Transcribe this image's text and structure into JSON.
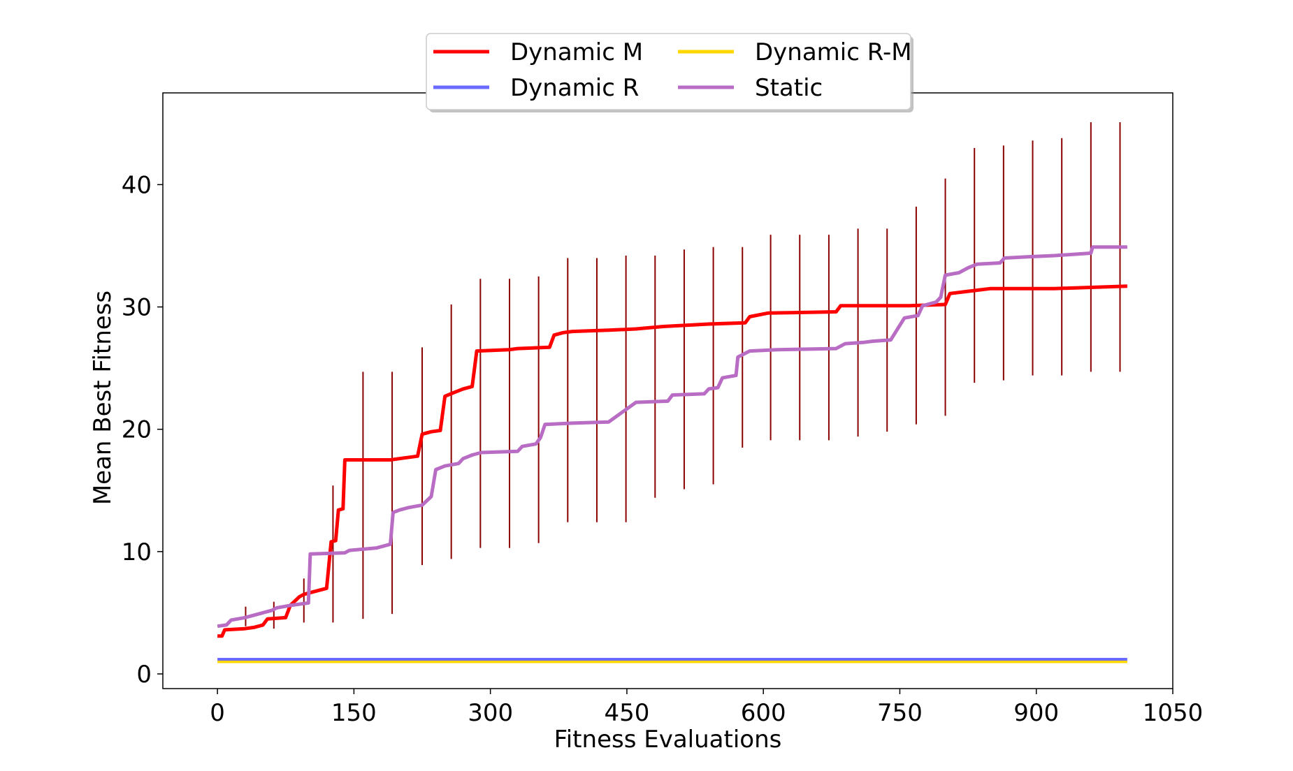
{
  "chart_data": {
    "type": "line",
    "title": "",
    "xlabel": "Fitness Evaluations",
    "ylabel": "Mean Best Fitness",
    "xlim": [
      -60,
      1050
    ],
    "ylim": [
      -1.2,
      47.5
    ],
    "xticks": [
      0,
      150,
      300,
      450,
      600,
      750,
      900,
      1050
    ],
    "yticks": [
      0,
      10,
      20,
      30,
      40
    ],
    "grid": false,
    "legend": {
      "placement": "top-center",
      "columns": 2,
      "entries": [
        "Dynamic M",
        "Dynamic R",
        "Dynamic R-M",
        "Static"
      ]
    },
    "series": [
      {
        "name": "Dynamic M",
        "color": "#ff0000",
        "errorbar_color": "#8b0000",
        "points": [
          [
            0,
            3.1
          ],
          [
            5,
            3.1
          ],
          [
            8,
            3.6
          ],
          [
            30,
            3.7
          ],
          [
            40,
            3.8
          ],
          [
            50,
            4.0
          ],
          [
            55,
            4.5
          ],
          [
            75,
            4.6
          ],
          [
            80,
            5.6
          ],
          [
            90,
            6.3
          ],
          [
            95,
            6.5
          ],
          [
            105,
            6.7
          ],
          [
            120,
            7.0
          ],
          [
            125,
            10.8
          ],
          [
            130,
            10.9
          ],
          [
            133,
            13.4
          ],
          [
            138,
            13.5
          ],
          [
            140,
            17.5
          ],
          [
            190,
            17.5
          ],
          [
            200,
            17.6
          ],
          [
            220,
            17.8
          ],
          [
            225,
            19.6
          ],
          [
            235,
            19.8
          ],
          [
            245,
            19.9
          ],
          [
            250,
            22.7
          ],
          [
            260,
            23.0
          ],
          [
            270,
            23.3
          ],
          [
            280,
            23.5
          ],
          [
            285,
            26.4
          ],
          [
            320,
            26.5
          ],
          [
            330,
            26.6
          ],
          [
            365,
            26.7
          ],
          [
            370,
            27.7
          ],
          [
            380,
            27.9
          ],
          [
            390,
            28.0
          ],
          [
            430,
            28.1
          ],
          [
            460,
            28.2
          ],
          [
            490,
            28.4
          ],
          [
            540,
            28.6
          ],
          [
            580,
            28.7
          ],
          [
            585,
            29.2
          ],
          [
            605,
            29.5
          ],
          [
            680,
            29.6
          ],
          [
            685,
            30.1
          ],
          [
            760,
            30.1
          ],
          [
            800,
            30.2
          ],
          [
            805,
            31.1
          ],
          [
            850,
            31.5
          ],
          [
            920,
            31.5
          ],
          [
            960,
            31.6
          ],
          [
            1000,
            31.7
          ]
        ],
        "error_bars": [
          [
            31,
            4.7,
            0.8
          ],
          [
            62,
            4.8,
            1.1
          ],
          [
            95,
            6.0,
            1.8
          ],
          [
            127,
            9.8,
            5.6
          ],
          [
            160,
            14.6,
            10.1
          ],
          [
            192,
            14.8,
            9.9
          ],
          [
            225,
            17.8,
            8.9
          ],
          [
            257,
            19.8,
            10.4
          ],
          [
            289,
            21.3,
            11.0
          ],
          [
            321,
            21.3,
            11.0
          ],
          [
            353,
            21.6,
            10.9
          ],
          [
            385,
            23.2,
            10.8
          ],
          [
            417,
            23.2,
            10.8
          ],
          [
            449,
            23.3,
            10.9
          ],
          [
            481,
            24.3,
            9.9
          ],
          [
            513,
            24.9,
            9.8
          ],
          [
            545,
            25.2,
            9.7
          ],
          [
            577,
            26.7,
            8.2
          ],
          [
            608,
            27.5,
            8.4
          ],
          [
            640,
            27.5,
            8.4
          ],
          [
            672,
            27.5,
            8.4
          ],
          [
            704,
            27.9,
            8.5
          ],
          [
            736,
            28.1,
            8.3
          ],
          [
            768,
            29.3,
            8.9
          ],
          [
            800,
            30.8,
            9.7
          ],
          [
            832,
            33.4,
            9.6
          ],
          [
            864,
            33.6,
            9.6
          ],
          [
            896,
            34.0,
            9.6
          ],
          [
            928,
            34.1,
            9.7
          ],
          [
            960,
            34.9,
            10.2
          ],
          [
            992,
            34.9,
            10.2
          ]
        ]
      },
      {
        "name": "Dynamic R",
        "color": "#6b6bff",
        "points": [
          [
            0,
            1.2
          ],
          [
            1000,
            1.2
          ]
        ]
      },
      {
        "name": "Dynamic R-M",
        "color": "#ffd700",
        "points": [
          [
            0,
            1.0
          ],
          [
            1000,
            1.0
          ]
        ]
      },
      {
        "name": "Static",
        "color": "#b86cc4",
        "errorbar_color": "#800080",
        "points": [
          [
            0,
            3.9
          ],
          [
            10,
            4.0
          ],
          [
            15,
            4.4
          ],
          [
            30,
            4.6
          ],
          [
            40,
            4.8
          ],
          [
            50,
            5.0
          ],
          [
            60,
            5.2
          ],
          [
            65,
            5.4
          ],
          [
            80,
            5.6
          ],
          [
            100,
            5.8
          ],
          [
            102,
            9.8
          ],
          [
            140,
            9.9
          ],
          [
            145,
            10.1
          ],
          [
            175,
            10.3
          ],
          [
            185,
            10.5
          ],
          [
            190,
            10.6
          ],
          [
            193,
            13.2
          ],
          [
            200,
            13.4
          ],
          [
            210,
            13.6
          ],
          [
            225,
            13.8
          ],
          [
            235,
            14.5
          ],
          [
            240,
            16.7
          ],
          [
            250,
            17.0
          ],
          [
            265,
            17.2
          ],
          [
            270,
            17.6
          ],
          [
            280,
            17.9
          ],
          [
            290,
            18.1
          ],
          [
            330,
            18.2
          ],
          [
            335,
            18.6
          ],
          [
            350,
            18.8
          ],
          [
            355,
            19.3
          ],
          [
            360,
            20.4
          ],
          [
            390,
            20.5
          ],
          [
            430,
            20.6
          ],
          [
            460,
            22.2
          ],
          [
            495,
            22.3
          ],
          [
            500,
            22.8
          ],
          [
            535,
            22.9
          ],
          [
            540,
            23.3
          ],
          [
            550,
            23.4
          ],
          [
            555,
            24.2
          ],
          [
            570,
            24.4
          ],
          [
            572,
            25.9
          ],
          [
            585,
            26.4
          ],
          [
            615,
            26.5
          ],
          [
            680,
            26.6
          ],
          [
            690,
            27.0
          ],
          [
            710,
            27.1
          ],
          [
            720,
            27.2
          ],
          [
            740,
            27.3
          ],
          [
            755,
            29.1
          ],
          [
            770,
            29.3
          ],
          [
            775,
            30.1
          ],
          [
            790,
            30.4
          ],
          [
            795,
            30.8
          ],
          [
            800,
            32.6
          ],
          [
            815,
            32.8
          ],
          [
            825,
            33.2
          ],
          [
            835,
            33.5
          ],
          [
            860,
            33.6
          ],
          [
            865,
            34.0
          ],
          [
            890,
            34.1
          ],
          [
            920,
            34.2
          ],
          [
            960,
            34.4
          ],
          [
            962,
            34.9
          ],
          [
            1000,
            34.9
          ]
        ]
      }
    ]
  }
}
